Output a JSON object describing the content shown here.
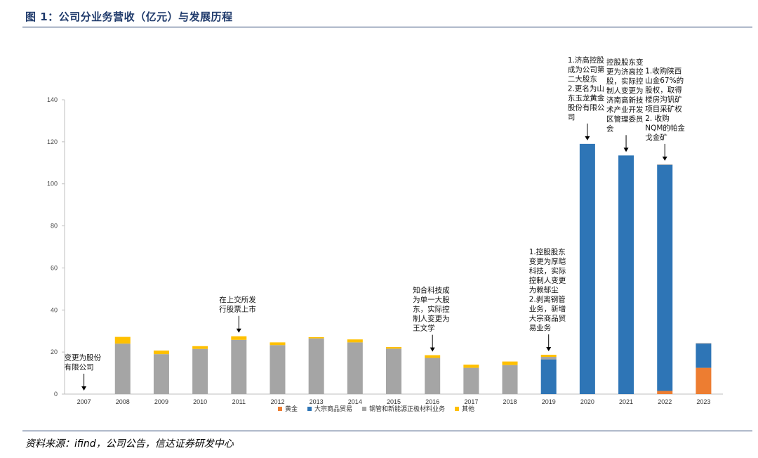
{
  "header": {
    "title": "图 1：公司分业务营收（亿元）与发展历程"
  },
  "footer": {
    "source": "资料来源：ifind，公司公告，信达证券研发中心"
  },
  "chart_data": {
    "type": "bar",
    "stacked": true,
    "title": "",
    "xlabel": "",
    "ylabel": "",
    "ylim": [
      0,
      140
    ],
    "yticks": [
      0,
      20,
      40,
      60,
      80,
      100,
      120,
      140
    ],
    "grid": false,
    "legend_position": "bottom",
    "categories": [
      "2007",
      "2008",
      "2009",
      "2010",
      "2011",
      "2012",
      "2013",
      "2014",
      "2015",
      "2016",
      "2017",
      "2018",
      "2019",
      "2020",
      "2021",
      "2022",
      "2023"
    ],
    "series": [
      {
        "name": "黄金",
        "color": "#ed7d31",
        "values": [
          0,
          0,
          0,
          0,
          0,
          0,
          0,
          0,
          0,
          0,
          0,
          0,
          0,
          0,
          0,
          1.5,
          12.5
        ]
      },
      {
        "name": "大宗商品贸易",
        "color": "#2e75b6",
        "values": [
          0,
          0,
          0,
          0,
          0,
          0,
          0,
          0,
          0,
          0,
          0,
          0,
          16.5,
          119,
          113.5,
          107.5,
          11.5
        ]
      },
      {
        "name": "钢管和新能源正极材料业务",
        "color": "#a5a5a5",
        "values": [
          0,
          24,
          19,
          21.5,
          25.8,
          23.3,
          26.5,
          24.6,
          21.6,
          17.2,
          12.5,
          13.8,
          1.2,
          0,
          0,
          0.3,
          0.3
        ]
      },
      {
        "name": "其他",
        "color": "#ffc000",
        "values": [
          0,
          3.2,
          1.7,
          1.3,
          1.7,
          1.3,
          0.6,
          1.4,
          0.8,
          1.3,
          1.5,
          1.7,
          1.0,
          0,
          0,
          0,
          0
        ]
      }
    ],
    "annotations": [
      {
        "category": "2007",
        "lines": [
          "变更为股份",
          "有限公司"
        ]
      },
      {
        "category": "2011",
        "lines": [
          "在上交所发",
          "行股票上市"
        ]
      },
      {
        "category": "2016",
        "lines": [
          "知合科技成",
          "为单一大股",
          "东，实际控",
          "制人变更为",
          "王文学"
        ]
      },
      {
        "category": "2019",
        "lines": [
          "1.控股股东",
          "变更为厚皑",
          "科技，实际",
          "控制人变更",
          "为赖郁尘",
          "2.剥离钢管",
          "业务，新增",
          "大宗商品贸",
          "易业务"
        ]
      },
      {
        "category": "2020",
        "lines": [
          "1.济高控股",
          "成为公司第",
          "二大股东",
          "2.更名为山",
          "东玉龙黄金",
          "股份有限公",
          "司"
        ]
      },
      {
        "category": "2021",
        "lines": [
          "控股股东变",
          "更为济高控",
          "股，实际控",
          "制人变更为",
          "济南高新技",
          "术产业开发",
          "区管理委员",
          "会"
        ]
      },
      {
        "category": "2022",
        "lines": [
          "1.收购陕西",
          "山金67%的",
          "股权，取得",
          "楼房沟钒矿",
          "项目采矿权",
          "2. 收购",
          "NQM的帕金",
          "戈金矿"
        ]
      }
    ]
  }
}
